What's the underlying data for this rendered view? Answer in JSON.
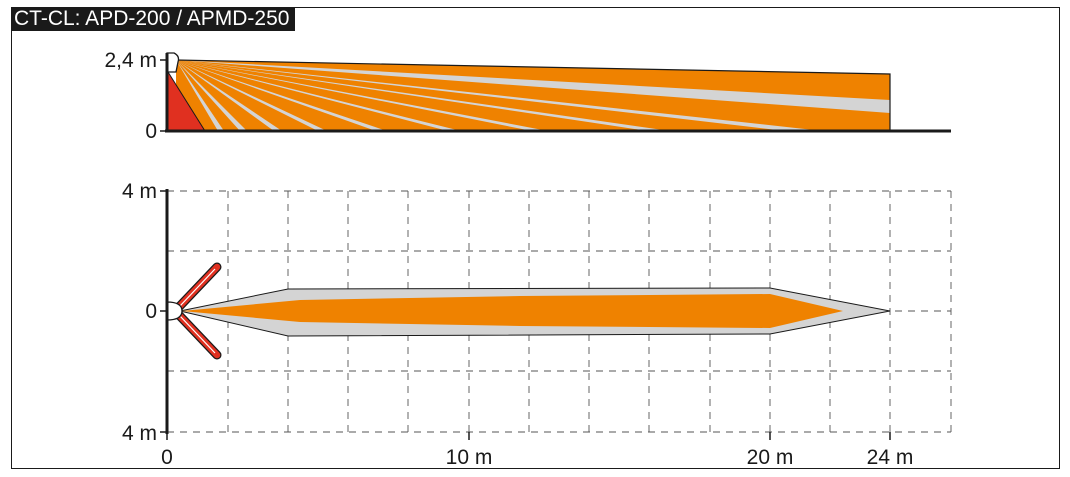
{
  "title": "CT-CL: APD-200 / APMD-250",
  "colors": {
    "zone_orange": "#ef8200",
    "zone_grey": "#d4d4d4",
    "near_zone_red": "#e03020",
    "axis": "#1a1a1a",
    "grid": "#555555",
    "frame": "#1a1a1a"
  },
  "side_view": {
    "y_labels": [
      "2,4 m",
      "0"
    ],
    "height_m": 2.4,
    "range_m": 24
  },
  "top_view": {
    "y_labels": [
      "4 m",
      "0",
      "4 m"
    ],
    "x_labels": [
      "0",
      "10 m",
      "20 m",
      "24 m"
    ],
    "range_m": 24,
    "half_width_m": 4
  }
}
